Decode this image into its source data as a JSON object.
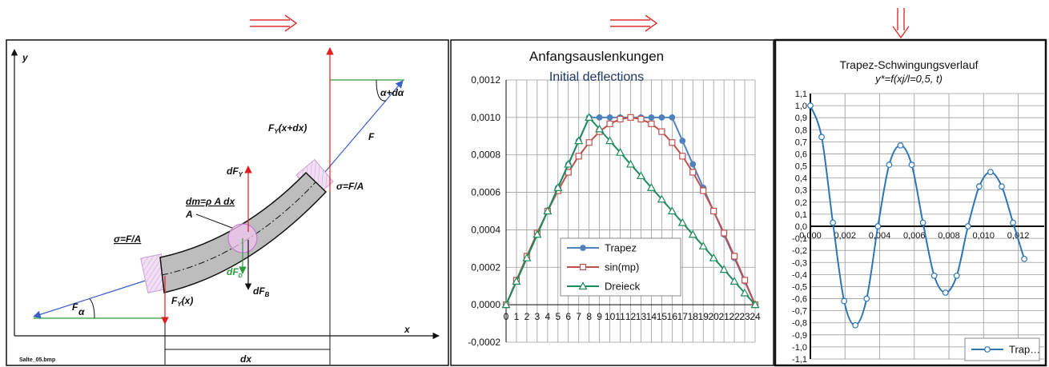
{
  "diagram": {
    "axis_y": "y",
    "axis_x": "x",
    "force_left": "F",
    "force_right": "F",
    "angle_left": "α",
    "angle_right": "α+dα",
    "fy_top": {
      "main": "F",
      "sub": "Y",
      "rest": "(x+dx)"
    },
    "fy_bottom": {
      "main": "F",
      "sub": "Y",
      "rest": "(x)"
    },
    "dfy": {
      "main": "dF",
      "sub": "Y"
    },
    "dfb": {
      "main": "dF",
      "sub": "B"
    },
    "dfd": {
      "main": "dF",
      "sub": "D"
    },
    "mass": "dm=ρ A dx",
    "area": "A",
    "stress_left": "σ=F/A",
    "stress_right": "σ=F/A",
    "dx": "dx",
    "file": "Salte_05.bmp"
  },
  "chart_data": [
    {
      "type": "line",
      "title": "Anfangsauslenkungen",
      "subtitle": "Initial deflections",
      "smooth": false,
      "grid": true,
      "x": [
        0,
        1,
        2,
        3,
        4,
        5,
        6,
        7,
        8,
        9,
        10,
        11,
        12,
        13,
        14,
        15,
        16,
        17,
        18,
        19,
        20,
        21,
        22,
        23,
        24
      ],
      "xlim": [
        0,
        24
      ],
      "xticks": [
        0,
        1,
        2,
        3,
        4,
        5,
        6,
        7,
        8,
        9,
        10,
        11,
        12,
        13,
        14,
        15,
        16,
        17,
        18,
        19,
        20,
        21,
        22,
        23,
        24
      ],
      "ylim": [
        -0.0002,
        0.0012
      ],
      "yticks": [
        {
          "value": -0.0002,
          "label": "-0,0002"
        },
        {
          "value": 0,
          "label": "0,0000"
        },
        {
          "value": 0.0002,
          "label": "0,0002"
        },
        {
          "value": 0.0004,
          "label": "0,0004"
        },
        {
          "value": 0.0006,
          "label": "0,0006"
        },
        {
          "value": 0.0008,
          "label": "0,0008"
        },
        {
          "value": 0.001,
          "label": "0,0010"
        },
        {
          "value": 0.0012,
          "label": "0,0012"
        }
      ],
      "series": [
        {
          "name": "Trapez",
          "color": "#4f81bd",
          "marker": "circle",
          "marker_filled": true,
          "values": [
            0,
            0.000125,
            0.00025,
            0.000375,
            0.0005,
            0.000625,
            0.00075,
            0.000875,
            0.001,
            0.001,
            0.001,
            0.001,
            0.001,
            0.001,
            0.001,
            0.001,
            0.001,
            0.000875,
            0.00075,
            0.000625,
            0.0005,
            0.000375,
            0.00025,
            0.000125,
            0
          ]
        },
        {
          "name": "sin(mp)",
          "color": "#c0504d",
          "marker": "square",
          "marker_filled": false,
          "values": [
            0,
            0.000131,
            0.000259,
            0.000383,
            0.0005,
            0.000609,
            0.000707,
            0.000793,
            0.000866,
            0.000924,
            0.000966,
            0.000991,
            0.001,
            0.000991,
            0.000966,
            0.000924,
            0.000866,
            0.000793,
            0.000707,
            0.000609,
            0.0005,
            0.000383,
            0.000259,
            0.000131,
            0
          ]
        },
        {
          "name": "Dreieck",
          "color": "#1e8c5a",
          "marker": "triangle",
          "marker_filled": false,
          "values": [
            0,
            0.000125,
            0.00025,
            0.000375,
            0.0005,
            0.000625,
            0.00075,
            0.000875,
            0.001,
            0.000938,
            0.000875,
            0.000813,
            0.00075,
            0.000688,
            0.000625,
            0.000563,
            0.0005,
            0.000438,
            0.000375,
            0.000313,
            0.00025,
            0.000188,
            0.000125,
            6.25e-05,
            0
          ]
        }
      ]
    },
    {
      "type": "line",
      "title": "Trapez-Schwingungsverlauf",
      "subtitle": "y*=f(xj/l=0,5, t)",
      "smooth": true,
      "grid": true,
      "x": [
        0,
        0.00065,
        0.0013,
        0.00195,
        0.0026,
        0.00325,
        0.0039,
        0.00455,
        0.0052,
        0.00585,
        0.0065,
        0.00715,
        0.0078,
        0.00845,
        0.0091,
        0.00975,
        0.0104,
        0.01105,
        0.0117,
        0.01235
      ],
      "xlim": [
        0,
        0.0135
      ],
      "xticks": [
        {
          "value": 0,
          "label": "0,000"
        },
        {
          "value": 0.002,
          "label": "0,002"
        },
        {
          "value": 0.004,
          "label": "0,004"
        },
        {
          "value": 0.006,
          "label": "0,006"
        },
        {
          "value": 0.008,
          "label": "0,008"
        },
        {
          "value": 0.01,
          "label": "0,010"
        },
        {
          "value": 0.012,
          "label": "0,012"
        }
      ],
      "ylim": [
        -1.1,
        1.1
      ],
      "yticks": [
        {
          "value": 1.1,
          "label": "1,1"
        },
        {
          "value": 1.0,
          "label": "1,0"
        },
        {
          "value": 0.9,
          "label": "0,9"
        },
        {
          "value": 0.8,
          "label": "0,8"
        },
        {
          "value": 0.7,
          "label": "0,7"
        },
        {
          "value": 0.6,
          "label": "0,6"
        },
        {
          "value": 0.5,
          "label": "0,5"
        },
        {
          "value": 0.4,
          "label": "0,4"
        },
        {
          "value": 0.3,
          "label": "0,3"
        },
        {
          "value": 0.2,
          "label": "0,2"
        },
        {
          "value": 0.1,
          "label": "0,1"
        },
        {
          "value": 0,
          "label": "0,0"
        },
        {
          "value": -0.1,
          "label": "-0,1"
        },
        {
          "value": -0.2,
          "label": "-0,2"
        },
        {
          "value": -0.3,
          "label": "-0,3"
        },
        {
          "value": -0.4,
          "label": "-0,4"
        },
        {
          "value": -0.5,
          "label": "-0,5"
        },
        {
          "value": -0.6,
          "label": "-0,6"
        },
        {
          "value": -0.7,
          "label": "-0,7"
        },
        {
          "value": -0.8,
          "label": "-0,8"
        },
        {
          "value": -0.9,
          "label": "-0,9"
        },
        {
          "value": -1.0,
          "label": "-1,0"
        },
        {
          "value": -1.1,
          "label": "-1,1"
        }
      ],
      "series": [
        {
          "name": "Trap…",
          "color": "#2e75b6",
          "marker": "circle",
          "marker_filled": false,
          "values": [
            1.0,
            0.74,
            0.03,
            -0.62,
            -0.82,
            -0.6,
            0.0,
            0.51,
            0.67,
            0.51,
            0.03,
            -0.41,
            -0.55,
            -0.41,
            0.0,
            0.33,
            0.45,
            0.33,
            0.03,
            -0.27
          ]
        }
      ]
    }
  ]
}
